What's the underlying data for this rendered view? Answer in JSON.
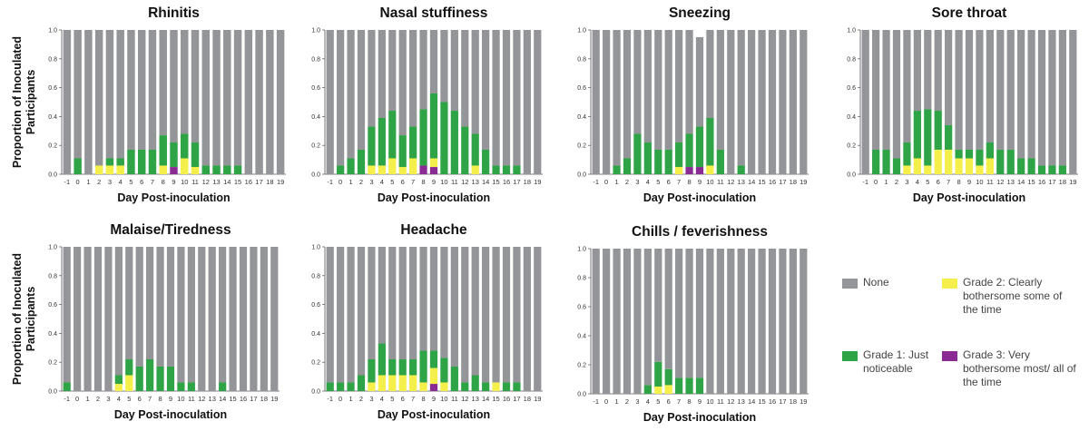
{
  "shared": {
    "xlabel": "Day Post-inoculation",
    "ylabel": "Proportion of Inoculated Participants",
    "ylim": [
      0,
      1.0
    ],
    "yticks": [
      "0.0",
      "0.2",
      "0.4",
      "0.6",
      "0.8",
      "1.0"
    ],
    "days": [
      "-1",
      "0",
      "1",
      "2",
      "3",
      "4",
      "5",
      "6",
      "7",
      "8",
      "9",
      "10",
      "11",
      "12",
      "13",
      "14",
      "15",
      "16",
      "17",
      "18",
      "19"
    ],
    "colors": {
      "None": "#939598",
      "Grade 1": "#2fa446",
      "Grade 2": "#f4ef4a",
      "Grade 3": "#8a2a93"
    }
  },
  "legend": [
    {
      "key": "None",
      "label": "None",
      "color": "#939598"
    },
    {
      "key": "Grade 2",
      "label": "Grade 2: Clearly bothersome some of the time",
      "color": "#f4ef4a"
    },
    {
      "key": "Grade 1",
      "label": "Grade 1: Just noticeable",
      "color": "#2fa446"
    },
    {
      "key": "Grade 3",
      "label": "Grade 3: Very bothersome most/ all of the time",
      "color": "#8a2a93"
    }
  ],
  "chart_data": [
    {
      "type": "bar",
      "stacked": true,
      "title": "Rhinitis",
      "xlabel": "Day Post-inoculation",
      "ylabel": "Proportion of Inoculated Participants",
      "ylim": [
        0,
        1.0
      ],
      "categories": [
        "-1",
        "0",
        "1",
        "2",
        "3",
        "4",
        "5",
        "6",
        "7",
        "8",
        "9",
        "10",
        "11",
        "12",
        "13",
        "14",
        "15",
        "16",
        "17",
        "18",
        "19"
      ],
      "series": [
        {
          "name": "Grade 3",
          "values": [
            0,
            0,
            0,
            0,
            0,
            0,
            0,
            0,
            0,
            0,
            0.05,
            0,
            0,
            0,
            0,
            0,
            0,
            0,
            0,
            0,
            0
          ]
        },
        {
          "name": "Grade 2",
          "values": [
            0,
            0,
            0,
            0.06,
            0.06,
            0.06,
            0,
            0,
            0,
            0.06,
            0,
            0.11,
            0.05,
            0,
            0,
            0,
            0,
            0,
            0,
            0,
            0
          ]
        },
        {
          "name": "Grade 1",
          "values": [
            0,
            0.11,
            0,
            0,
            0.05,
            0.05,
            0.17,
            0.17,
            0.17,
            0.21,
            0.17,
            0.17,
            0.17,
            0.06,
            0.06,
            0.06,
            0.06,
            0,
            0,
            0,
            0
          ]
        },
        {
          "name": "None",
          "values": [
            1,
            0.89,
            1,
            0.94,
            0.89,
            0.89,
            0.83,
            0.83,
            0.83,
            0.73,
            0.78,
            0.72,
            0.78,
            0.94,
            0.94,
            0.94,
            0.94,
            1,
            1,
            1,
            1
          ]
        }
      ]
    },
    {
      "type": "bar",
      "stacked": true,
      "title": "Nasal stuffiness",
      "xlabel": "Day Post-inoculation",
      "ylabel": "",
      "ylim": [
        0,
        1.0
      ],
      "categories": [
        "-1",
        "0",
        "1",
        "2",
        "3",
        "4",
        "5",
        "6",
        "7",
        "8",
        "9",
        "10",
        "11",
        "12",
        "13",
        "14",
        "15",
        "16",
        "17",
        "18",
        "19"
      ],
      "series": [
        {
          "name": "Grade 3",
          "values": [
            0,
            0,
            0,
            0,
            0,
            0,
            0,
            0,
            0,
            0.06,
            0.05,
            0,
            0,
            0,
            0,
            0,
            0,
            0,
            0,
            0,
            0
          ]
        },
        {
          "name": "Grade 2",
          "values": [
            0,
            0,
            0,
            0,
            0.06,
            0.06,
            0.11,
            0.05,
            0.11,
            0,
            0.06,
            0,
            0,
            0,
            0.06,
            0,
            0,
            0,
            0,
            0,
            0
          ]
        },
        {
          "name": "Grade 1",
          "values": [
            0,
            0.06,
            0.11,
            0.17,
            0.27,
            0.33,
            0.33,
            0.22,
            0.22,
            0.39,
            0.45,
            0.5,
            0.44,
            0.33,
            0.22,
            0.17,
            0.06,
            0.06,
            0.06,
            0,
            0
          ]
        },
        {
          "name": "None",
          "values": [
            1,
            0.94,
            0.89,
            0.83,
            0.67,
            0.61,
            0.56,
            0.73,
            0.67,
            0.55,
            0.44,
            0.5,
            0.56,
            0.67,
            0.72,
            0.83,
            0.94,
            0.94,
            0.94,
            1,
            1
          ]
        }
      ]
    },
    {
      "type": "bar",
      "stacked": true,
      "title": "Sneezing",
      "xlabel": "Day Post-inoculation",
      "ylabel": "",
      "ylim": [
        0,
        1.0
      ],
      "categories": [
        "-1",
        "0",
        "1",
        "2",
        "3",
        "4",
        "5",
        "6",
        "7",
        "8",
        "9",
        "10",
        "11",
        "12",
        "13",
        "14",
        "15",
        "16",
        "17",
        "18",
        "19"
      ],
      "series": [
        {
          "name": "Grade 3",
          "values": [
            0,
            0,
            0,
            0,
            0,
            0,
            0,
            0,
            0,
            0.05,
            0.05,
            0,
            0,
            0,
            0,
            0,
            0,
            0,
            0,
            0,
            0
          ]
        },
        {
          "name": "Grade 2",
          "values": [
            0,
            0,
            0,
            0,
            0,
            0,
            0,
            0,
            0.05,
            0,
            0,
            0.06,
            0,
            0,
            0,
            0,
            0,
            0,
            0,
            0,
            0
          ]
        },
        {
          "name": "Grade 1",
          "values": [
            0,
            0,
            0.06,
            0.11,
            0.28,
            0.22,
            0.17,
            0.17,
            0.17,
            0.23,
            0.28,
            0.33,
            0.17,
            0,
            0.06,
            0,
            0,
            0,
            0,
            0,
            0
          ]
        },
        {
          "name": "None",
          "values": [
            1,
            1,
            0.94,
            0.89,
            0.72,
            0.78,
            0.83,
            0.83,
            0.78,
            0.72,
            0.62,
            0.61,
            0.83,
            1,
            0.94,
            1,
            1,
            1,
            1,
            1,
            1
          ]
        }
      ]
    },
    {
      "type": "bar",
      "stacked": true,
      "title": "Sore throat",
      "xlabel": "Day Post-inoculation",
      "ylabel": "",
      "ylim": [
        0,
        1.0
      ],
      "categories": [
        "-1",
        "0",
        "1",
        "2",
        "3",
        "4",
        "5",
        "6",
        "7",
        "8",
        "9",
        "10",
        "11",
        "12",
        "13",
        "14",
        "15",
        "16",
        "17",
        "18",
        "19"
      ],
      "series": [
        {
          "name": "Grade 3",
          "values": [
            0,
            0,
            0,
            0,
            0,
            0,
            0,
            0,
            0,
            0,
            0,
            0,
            0,
            0,
            0,
            0,
            0,
            0,
            0,
            0,
            0
          ]
        },
        {
          "name": "Grade 2",
          "values": [
            0,
            0,
            0,
            0,
            0.06,
            0.11,
            0.06,
            0.17,
            0.17,
            0.11,
            0.11,
            0.06,
            0.11,
            0,
            0,
            0,
            0,
            0,
            0,
            0,
            0
          ]
        },
        {
          "name": "Grade 1",
          "values": [
            0,
            0.17,
            0.17,
            0.11,
            0.16,
            0.33,
            0.39,
            0.27,
            0.17,
            0.06,
            0.06,
            0.11,
            0.11,
            0.17,
            0.17,
            0.11,
            0.11,
            0.06,
            0.06,
            0.06,
            0
          ]
        },
        {
          "name": "None",
          "values": [
            1,
            0.83,
            0.83,
            0.89,
            0.78,
            0.56,
            0.55,
            0.56,
            0.66,
            0.83,
            0.83,
            0.83,
            0.78,
            0.83,
            0.83,
            0.89,
            0.89,
            0.94,
            0.94,
            0.94,
            1
          ]
        }
      ]
    },
    {
      "type": "bar",
      "stacked": true,
      "title": "Malaise/Tiredness",
      "xlabel": "Day Post-inoculation",
      "ylabel": "Proportion of Inoculated Participants",
      "ylim": [
        0,
        1.0
      ],
      "categories": [
        "-1",
        "0",
        "1",
        "2",
        "3",
        "4",
        "5",
        "6",
        "7",
        "8",
        "9",
        "10",
        "11",
        "12",
        "13",
        "14",
        "15",
        "16",
        "17",
        "18",
        "19"
      ],
      "series": [
        {
          "name": "Grade 3",
          "values": [
            0,
            0,
            0,
            0,
            0,
            0,
            0,
            0,
            0,
            0,
            0,
            0,
            0,
            0,
            0,
            0,
            0,
            0,
            0,
            0,
            0
          ]
        },
        {
          "name": "Grade 2",
          "values": [
            0,
            0,
            0,
            0,
            0,
            0.05,
            0.11,
            0,
            0,
            0,
            0,
            0,
            0,
            0,
            0,
            0,
            0,
            0,
            0,
            0,
            0
          ]
        },
        {
          "name": "Grade 1",
          "values": [
            0.06,
            0,
            0,
            0,
            0,
            0.06,
            0.11,
            0.17,
            0.22,
            0.17,
            0.17,
            0.06,
            0.06,
            0,
            0,
            0.06,
            0,
            0,
            0,
            0,
            0
          ]
        },
        {
          "name": "None",
          "values": [
            0.94,
            1,
            1,
            1,
            1,
            0.89,
            0.78,
            0.83,
            0.78,
            0.83,
            0.83,
            0.94,
            0.94,
            1,
            1,
            0.94,
            1,
            1,
            1,
            1,
            1
          ]
        }
      ]
    },
    {
      "type": "bar",
      "stacked": true,
      "title": "Headache",
      "xlabel": "Day Post-inoculation",
      "ylabel": "",
      "ylim": [
        0,
        1.0
      ],
      "categories": [
        "-1",
        "0",
        "1",
        "2",
        "3",
        "4",
        "5",
        "6",
        "7",
        "8",
        "9",
        "10",
        "11",
        "12",
        "13",
        "14",
        "15",
        "16",
        "17",
        "18",
        "19"
      ],
      "series": [
        {
          "name": "Grade 3",
          "values": [
            0,
            0,
            0,
            0,
            0,
            0,
            0,
            0,
            0,
            0,
            0.05,
            0,
            0,
            0,
            0,
            0,
            0,
            0,
            0,
            0,
            0
          ]
        },
        {
          "name": "Grade 2",
          "values": [
            0,
            0,
            0,
            0,
            0.06,
            0.11,
            0.11,
            0.11,
            0.11,
            0.06,
            0.11,
            0.06,
            0,
            0,
            0,
            0,
            0.06,
            0,
            0,
            0,
            0
          ]
        },
        {
          "name": "Grade 1",
          "values": [
            0.06,
            0.06,
            0.06,
            0.11,
            0.16,
            0.22,
            0.11,
            0.11,
            0.11,
            0.22,
            0.12,
            0.17,
            0.17,
            0.06,
            0.11,
            0.06,
            0,
            0.06,
            0.06,
            0,
            0
          ]
        },
        {
          "name": "None",
          "values": [
            0.94,
            0.94,
            0.94,
            0.89,
            0.78,
            0.67,
            0.78,
            0.78,
            0.78,
            0.72,
            0.72,
            0.77,
            0.83,
            0.94,
            0.89,
            0.94,
            0.94,
            0.94,
            0.94,
            1,
            1
          ]
        }
      ]
    },
    {
      "type": "bar",
      "stacked": true,
      "title": "Chills / feverishness",
      "xlabel": "Day Post-inoculation",
      "ylabel": "",
      "ylim": [
        0,
        1.0
      ],
      "categories": [
        "-1",
        "0",
        "1",
        "2",
        "3",
        "4",
        "5",
        "6",
        "7",
        "8",
        "9",
        "10",
        "11",
        "12",
        "13",
        "14",
        "15",
        "16",
        "17",
        "18",
        "19"
      ],
      "series": [
        {
          "name": "Grade 3",
          "values": [
            0,
            0,
            0,
            0,
            0,
            0,
            0,
            0,
            0,
            0,
            0,
            0,
            0,
            0,
            0,
            0,
            0,
            0,
            0,
            0,
            0
          ]
        },
        {
          "name": "Grade 2",
          "values": [
            0,
            0,
            0,
            0,
            0,
            0,
            0.05,
            0.06,
            0,
            0,
            0,
            0,
            0,
            0,
            0,
            0,
            0,
            0,
            0,
            0,
            0
          ]
        },
        {
          "name": "Grade 1",
          "values": [
            0,
            0,
            0,
            0,
            0,
            0.06,
            0.17,
            0.11,
            0.11,
            0.11,
            0.11,
            0,
            0,
            0,
            0,
            0,
            0,
            0,
            0,
            0,
            0
          ]
        },
        {
          "name": "None",
          "values": [
            1,
            1,
            1,
            1,
            1,
            0.94,
            0.78,
            0.83,
            0.89,
            0.89,
            0.89,
            1,
            1,
            1,
            1,
            1,
            1,
            1,
            1,
            1,
            1
          ]
        }
      ]
    }
  ]
}
